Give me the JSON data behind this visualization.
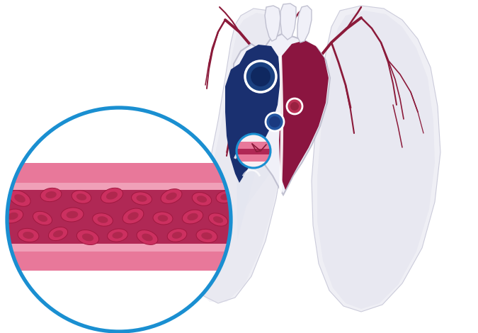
{
  "bg_color": "#ffffff",
  "lung_color": "#eeeef5",
  "lung_shadow": "#d8d8e8",
  "lung_border": "#c8c8d8",
  "vessel_dark": "#8b1a3a",
  "heart_white": "#f0f0f8",
  "heart_blue": "#1a3070",
  "heart_red": "#8b1540",
  "circle_bg_blue": "#b8d8f0",
  "circle_border": "#1a8fd1",
  "vessel_wall_pink": "#e8789a",
  "vessel_wall_light": "#f0a0b8",
  "vessel_lumen_dark": "#b02855",
  "rbc_body": "#cc3060",
  "rbc_edge": "#a01840",
  "rbc_dimple": "#992040"
}
